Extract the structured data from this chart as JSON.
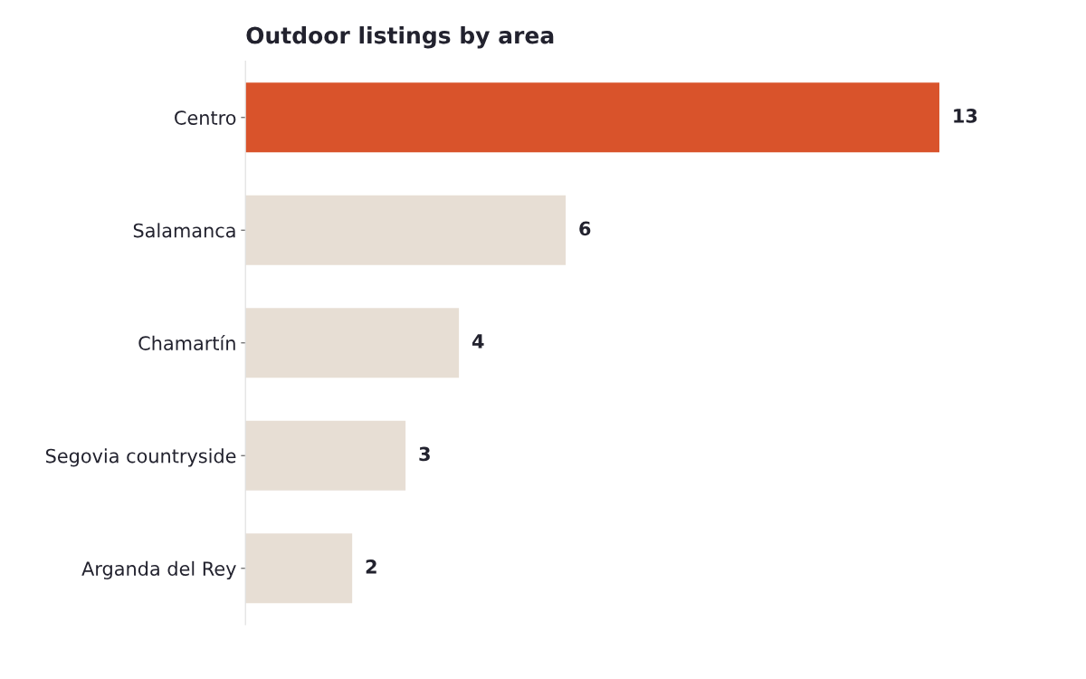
{
  "chart_data": {
    "type": "bar",
    "orientation": "horizontal",
    "title": "Outdoor listings by area",
    "categories": [
      "Centro",
      "Salamanca",
      "Chamartín",
      "Segovia countryside",
      "Arganda del Rey"
    ],
    "values": [
      13,
      6,
      4,
      3,
      2
    ],
    "colors": [
      "#d9532b",
      "#e7ded4",
      "#e7ded4",
      "#e7ded4",
      "#e7ded4"
    ],
    "data_labels": true,
    "grid": false,
    "legend": false,
    "tick_labels": "y"
  }
}
